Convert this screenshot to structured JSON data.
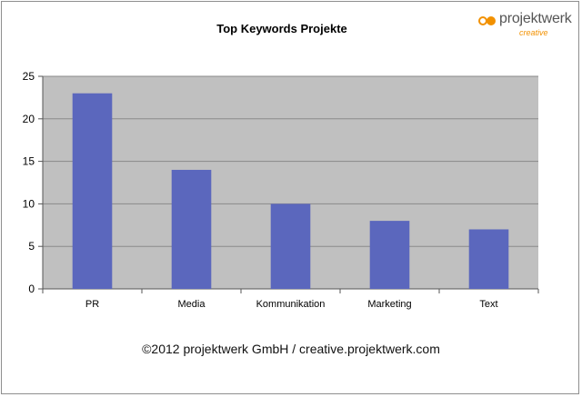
{
  "logo": {
    "word": "projektwerk",
    "sub": "creative"
  },
  "copyright": "©2012 projektwerk GmbH / creative.projektwerk.com",
  "colors": {
    "bar": "#5b67bd",
    "plot_bg": "#c0c0c0",
    "grid": "#8a8a8a",
    "accent": "#f29100"
  },
  "chart_data": {
    "type": "bar",
    "title": "Top Keywords Projekte",
    "xlabel": "",
    "ylabel": "",
    "categories": [
      "PR",
      "Media",
      "Kommunikation",
      "Marketing",
      "Text"
    ],
    "values": [
      23,
      14,
      10,
      8,
      7
    ],
    "ylim": [
      0,
      25
    ],
    "yticks": [
      0,
      5,
      10,
      15,
      20,
      25
    ],
    "grid": true,
    "legend": "none"
  }
}
